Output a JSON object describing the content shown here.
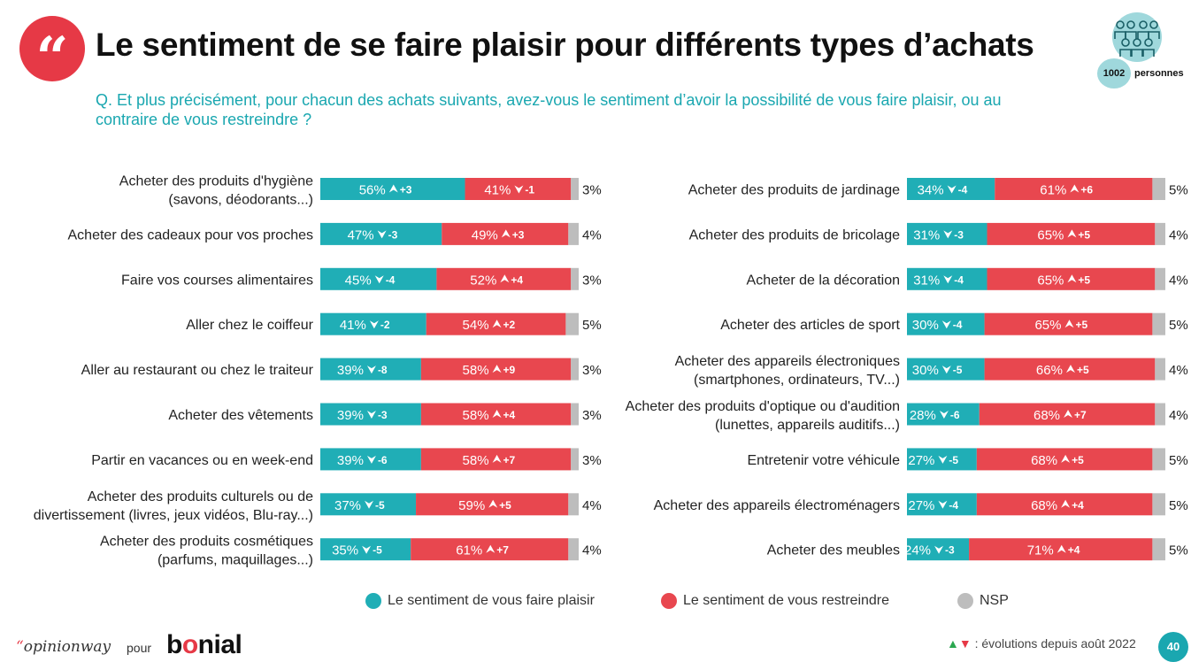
{
  "header": {
    "quote_mark": "“",
    "title": "Le sentiment de se faire plaisir pour différents types d’achats",
    "question": "Q. Et plus précisément, pour chacun des achats suivants, avez-vous le sentiment d’avoir la possibilité de vous faire plaisir, ou au contraire de vous restreindre ?",
    "sample_count": "1002",
    "sample_label": "personnes"
  },
  "chart_data": {
    "type": "bar",
    "orientation": "horizontal-stacked-100",
    "series": [
      {
        "name": "Le sentiment de vous faire plaisir",
        "color": "#20aeb6"
      },
      {
        "name": "Le sentiment de vous restreindre",
        "color": "#e8474f"
      },
      {
        "name": "NSP",
        "color": "#bdbdbd"
      }
    ],
    "panels": [
      {
        "position": "left",
        "items": [
          {
            "label": [
              "Acheter des produits d'hygiène",
              "(savons, déodorants...)"
            ],
            "values": [
              56,
              41,
              3
            ],
            "evolutions": [
              "+3",
              "-1"
            ]
          },
          {
            "label": [
              "Acheter des cadeaux pour vos proches"
            ],
            "values": [
              47,
              49,
              4
            ],
            "evolutions": [
              "-3",
              "+3"
            ]
          },
          {
            "label": [
              "Faire vos courses alimentaires"
            ],
            "values": [
              45,
              52,
              3
            ],
            "evolutions": [
              "-4",
              "+4"
            ]
          },
          {
            "label": [
              "Aller chez le coiffeur"
            ],
            "values": [
              41,
              54,
              5
            ],
            "evolutions": [
              "-2",
              "+2"
            ]
          },
          {
            "label": [
              "Aller au restaurant ou chez le traiteur"
            ],
            "values": [
              39,
              58,
              3
            ],
            "evolutions": [
              "-8",
              "+9"
            ]
          },
          {
            "label": [
              "Acheter des vêtements"
            ],
            "values": [
              39,
              58,
              3
            ],
            "evolutions": [
              "-3",
              "+4"
            ]
          },
          {
            "label": [
              "Partir en vacances ou en week-end"
            ],
            "values": [
              39,
              58,
              3
            ],
            "evolutions": [
              "-6",
              "+7"
            ]
          },
          {
            "label": [
              "Acheter des produits culturels ou de",
              "divertissement (livres, jeux vidéos, Blu-ray...)"
            ],
            "values": [
              37,
              59,
              4
            ],
            "evolutions": [
              "-5",
              "+5"
            ]
          },
          {
            "label": [
              "Acheter des produits cosmétiques",
              "(parfums, maquillages...)"
            ],
            "values": [
              35,
              61,
              4
            ],
            "evolutions": [
              "-5",
              "+7"
            ]
          }
        ]
      },
      {
        "position": "right",
        "items": [
          {
            "label": [
              "Acheter des produits de jardinage"
            ],
            "values": [
              34,
              61,
              5
            ],
            "evolutions": [
              "-4",
              "+6"
            ]
          },
          {
            "label": [
              "Acheter des produits de bricolage"
            ],
            "values": [
              31,
              65,
              4
            ],
            "evolutions": [
              "-3",
              "+5"
            ]
          },
          {
            "label": [
              "Acheter de la décoration"
            ],
            "values": [
              31,
              65,
              4
            ],
            "evolutions": [
              "-4",
              "+5"
            ]
          },
          {
            "label": [
              "Acheter des articles de sport"
            ],
            "values": [
              30,
              65,
              5
            ],
            "evolutions": [
              "-4",
              "+5"
            ]
          },
          {
            "label": [
              "Acheter des appareils électroniques",
              "(smartphones, ordinateurs, TV...)"
            ],
            "values": [
              30,
              66,
              4
            ],
            "evolutions": [
              "-5",
              "+5"
            ]
          },
          {
            "label": [
              "Acheter des produits d'optique ou d'audition",
              "(lunettes, appareils auditifs...)"
            ],
            "values": [
              28,
              68,
              4
            ],
            "evolutions": [
              "-6",
              "+7"
            ]
          },
          {
            "label": [
              "Entretenir votre véhicule"
            ],
            "values": [
              27,
              68,
              5
            ],
            "evolutions": [
              "-5",
              "+5"
            ]
          },
          {
            "label": [
              "Acheter des appareils électroménagers"
            ],
            "values": [
              27,
              68,
              5
            ],
            "evolutions": [
              "-4",
              "+4"
            ]
          },
          {
            "label": [
              "Acheter des meubles"
            ],
            "values": [
              24,
              71,
              5
            ],
            "evolutions": [
              "-3",
              "+4"
            ]
          }
        ]
      }
    ],
    "value_suffix": "%",
    "up_arrow_color": "#ffffff",
    "down_arrow_color": "#ffffff"
  },
  "footer": {
    "brand_opinionway": "opinionway",
    "pour": "pour",
    "brand_bonial_1": "b",
    "brand_bonial_2": "o",
    "brand_bonial_3": "nial",
    "evolution_note": ": évolutions depuis août 2022",
    "page_number": "40"
  },
  "colors": {
    "accent_red": "#e63946",
    "accent_teal": "#1aa7b0"
  }
}
